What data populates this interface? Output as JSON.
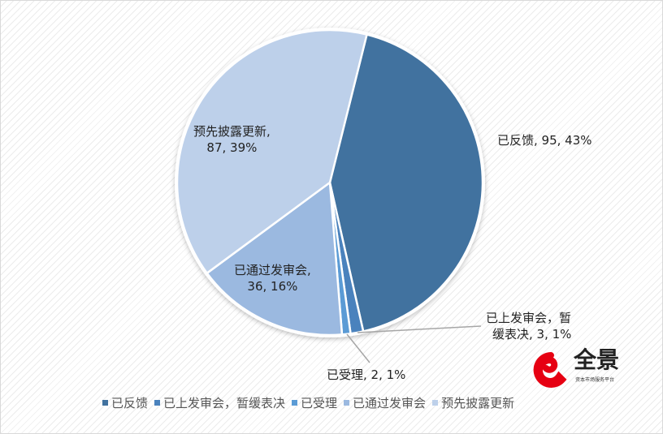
{
  "chart_data": {
    "type": "pie",
    "categories": [
      "已反馈",
      "已上发审会，暂缓表决",
      "已受理",
      "已通过发审会",
      "预先披露更新"
    ],
    "values": [
      95,
      3,
      2,
      36,
      87
    ],
    "percents": [
      "43%",
      "1%",
      "1%",
      "16%",
      "39%"
    ],
    "colors": [
      "#41729f",
      "#4a82bd",
      "#5b9bd5",
      "#9bb9e0",
      "#bdd0ea"
    ],
    "data_labels": [
      "已反馈, 95, 43%",
      "已上发审会，暂缓表决, 3, 1%",
      "已受理, 2, 1%",
      "已通过发审会, 36, 16%",
      "预先披露更新, 87, 39%"
    ],
    "legend_position": "bottom"
  },
  "labels": {
    "l0": "已反馈, 95, 43%",
    "l1a": "已上发审会，暂",
    "l1b": "缓表决, 3, 1%",
    "l2": "已受理, 2, 1%",
    "l3a": "已通过发审会,",
    "l3b": "36, 16%",
    "l4a": "预先披露更新,",
    "l4b": "87, 39%"
  },
  "logo": {
    "text": "全景",
    "subtext": "资本市场服务平台",
    "color": "#e60012"
  }
}
